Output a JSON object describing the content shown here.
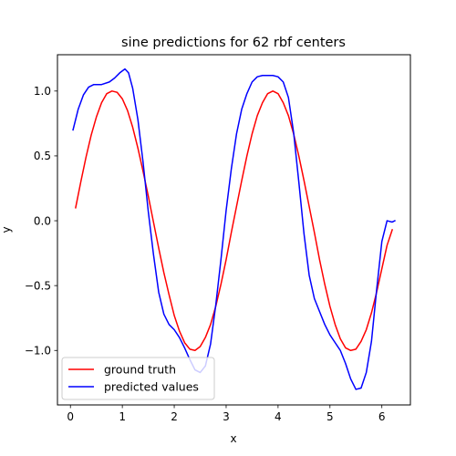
{
  "chart_data": {
    "type": "line",
    "title": "sine predictions for 62 rbf centers",
    "xlabel": "x",
    "ylabel": "y",
    "xlim": [
      -0.25,
      6.55
    ],
    "ylim": [
      -1.42,
      1.28
    ],
    "xticks": [
      0,
      1,
      2,
      3,
      4,
      5,
      6
    ],
    "xtick_labels": [
      "0",
      "1",
      "2",
      "3",
      "4",
      "5",
      "6"
    ],
    "yticks": [
      -1.0,
      -0.5,
      0.0,
      0.5,
      1.0
    ],
    "ytick_labels": [
      "−1.0",
      "−0.5",
      "0.0",
      "0.5",
      "1.0"
    ],
    "grid": false,
    "legend_position": "lower-left",
    "series": [
      {
        "name": "ground truth",
        "color": "#ff0000",
        "x": [
          0.1,
          0.2,
          0.3,
          0.4,
          0.5,
          0.6,
          0.7,
          0.8,
          0.9,
          1.0,
          1.1,
          1.2,
          1.3,
          1.4,
          1.5,
          1.6,
          1.7,
          1.8,
          1.9,
          2.0,
          2.1,
          2.2,
          2.3,
          2.4,
          2.5,
          2.6,
          2.7,
          2.8,
          2.9,
          3.0,
          3.1,
          3.2,
          3.3,
          3.4,
          3.5,
          3.6,
          3.7,
          3.8,
          3.9,
          4.0,
          4.1,
          4.2,
          4.3,
          4.4,
          4.5,
          4.6,
          4.7,
          4.8,
          4.9,
          5.0,
          5.1,
          5.2,
          5.3,
          5.4,
          5.5,
          5.6,
          5.7,
          5.8,
          5.9,
          6.0,
          6.1,
          6.2
        ],
        "y": [
          0.1,
          0.3,
          0.49,
          0.66,
          0.8,
          0.91,
          0.98,
          1.0,
          0.99,
          0.94,
          0.85,
          0.72,
          0.56,
          0.38,
          0.19,
          -0.01,
          -0.21,
          -0.4,
          -0.57,
          -0.73,
          -0.85,
          -0.94,
          -0.99,
          -1.0,
          -0.97,
          -0.9,
          -0.8,
          -0.66,
          -0.49,
          -0.3,
          -0.09,
          0.11,
          0.31,
          0.5,
          0.67,
          0.81,
          0.91,
          0.98,
          1.0,
          0.98,
          0.91,
          0.81,
          0.67,
          0.5,
          0.31,
          0.11,
          -0.09,
          -0.3,
          -0.49,
          -0.66,
          -0.8,
          -0.91,
          -0.98,
          -1.0,
          -0.99,
          -0.93,
          -0.84,
          -0.71,
          -0.55,
          -0.37,
          -0.19,
          -0.07
        ]
      },
      {
        "name": "predicted values",
        "color": "#0000ff",
        "x": [
          0.05,
          0.15,
          0.25,
          0.35,
          0.45,
          0.6,
          0.75,
          0.85,
          0.95,
          1.05,
          1.12,
          1.2,
          1.3,
          1.4,
          1.5,
          1.6,
          1.7,
          1.8,
          1.9,
          2.0,
          2.1,
          2.2,
          2.3,
          2.4,
          2.5,
          2.6,
          2.7,
          2.8,
          2.9,
          3.0,
          3.1,
          3.2,
          3.3,
          3.4,
          3.5,
          3.6,
          3.7,
          3.8,
          3.9,
          4.0,
          4.1,
          4.2,
          4.3,
          4.4,
          4.5,
          4.6,
          4.7,
          4.8,
          4.9,
          5.0,
          5.1,
          5.2,
          5.3,
          5.4,
          5.5,
          5.6,
          5.7,
          5.8,
          5.9,
          6.0,
          6.1,
          6.2,
          6.25
        ],
        "y": [
          0.7,
          0.86,
          0.97,
          1.03,
          1.05,
          1.05,
          1.07,
          1.1,
          1.14,
          1.17,
          1.14,
          1.02,
          0.78,
          0.45,
          0.07,
          -0.26,
          -0.55,
          -0.72,
          -0.8,
          -0.84,
          -0.9,
          -0.98,
          -1.07,
          -1.15,
          -1.17,
          -1.12,
          -0.95,
          -0.65,
          -0.3,
          0.08,
          0.4,
          0.67,
          0.86,
          0.98,
          1.07,
          1.11,
          1.12,
          1.12,
          1.12,
          1.11,
          1.07,
          0.95,
          0.68,
          0.3,
          -0.1,
          -0.42,
          -0.6,
          -0.7,
          -0.8,
          -0.88,
          -0.94,
          -1.0,
          -1.1,
          -1.22,
          -1.3,
          -1.29,
          -1.17,
          -0.93,
          -0.53,
          -0.16,
          0.0,
          -0.01,
          0.0
        ]
      }
    ]
  }
}
